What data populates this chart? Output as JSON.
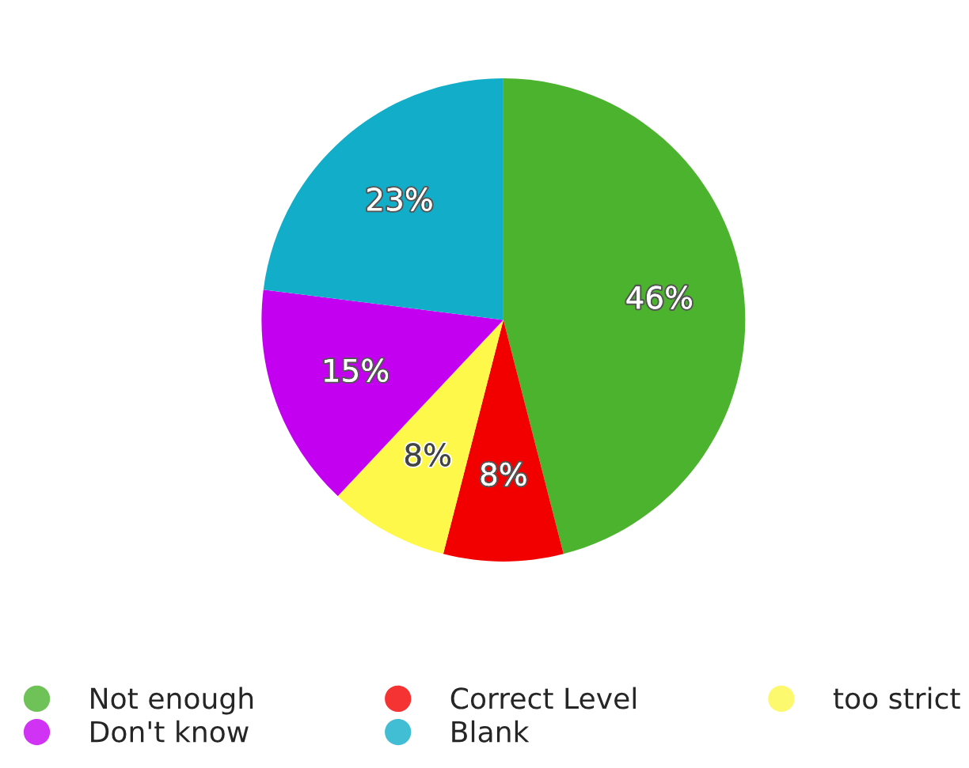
{
  "chart_data": {
    "type": "pie",
    "categories": [
      "Not enough",
      "Correct Level",
      "too strict",
      "Don't know",
      "Blank"
    ],
    "values": [
      46,
      8,
      8,
      15,
      23
    ],
    "colors": [
      "#4bb32e",
      "#f20000",
      "#fdf84a",
      "#c400f0",
      "#12adc9"
    ],
    "value_labels": [
      "46%",
      "8%",
      "8%",
      "15%",
      "23%"
    ],
    "legend": "bottom"
  }
}
